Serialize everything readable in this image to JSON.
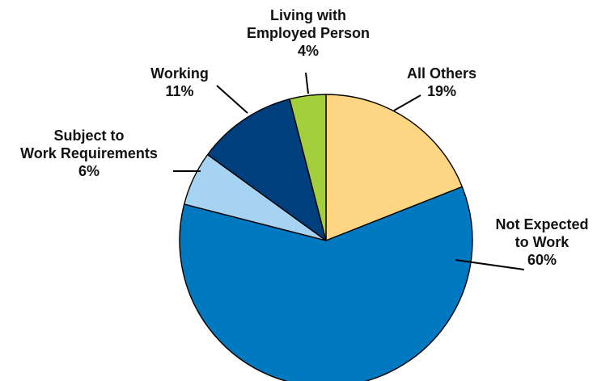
{
  "chart_data": {
    "type": "pie",
    "slices": [
      {
        "label_lines": [
          "All Others"
        ],
        "pct_text": "19%",
        "value": 19,
        "color": "#FDD583"
      },
      {
        "label_lines": [
          "Not Expected",
          "to Work"
        ],
        "pct_text": "60%",
        "value": 60,
        "color": "#0079C1"
      },
      {
        "label_lines": [
          "Subject to",
          "Work Requirements"
        ],
        "pct_text": "6%",
        "value": 6,
        "color": "#A6D3F2"
      },
      {
        "label_lines": [
          "Working"
        ],
        "pct_text": "11%",
        "value": 11,
        "color": "#003F7D"
      },
      {
        "label_lines": [
          "Living with",
          "Employed Person"
        ],
        "pct_text": "4%",
        "value": 4,
        "color": "#A4CF3C"
      }
    ]
  }
}
